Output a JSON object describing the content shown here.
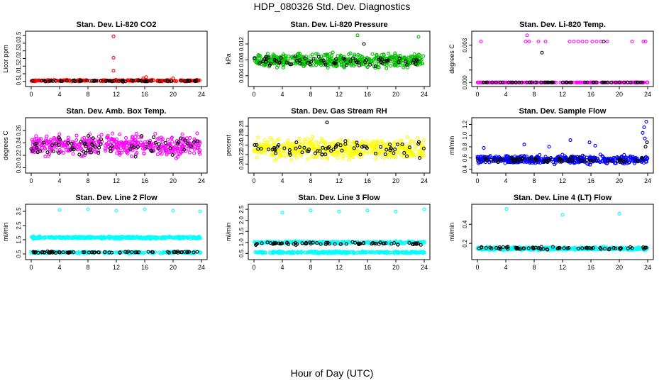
{
  "figure": {
    "title": "HDP_080326  Std. Dev. Diagnostics",
    "xlabel": "Hour of Day (UTC)"
  },
  "chart_data": [
    {
      "type": "scatter",
      "title": "Stan. Dev. Li-820 CO2",
      "ylabel": "Licor ppm",
      "color": "#ff0000",
      "xlim": [
        0,
        24
      ],
      "xticks": [
        0,
        4,
        8,
        12,
        16,
        20,
        24
      ],
      "ylim": [
        0.35,
        3.6
      ],
      "yticks": [
        0.5,
        1.0,
        1.5,
        2.0,
        2.5,
        3.0,
        3.5
      ],
      "ytick_labels": [
        "0.5",
        "1.0",
        "1.5",
        "2.0",
        "2.5",
        "3.0",
        "3.5"
      ],
      "series": [
        {
          "name": "colored",
          "color": "#ff0000",
          "n": 240,
          "base": 0.55,
          "spread": 0.05,
          "x_range": [
            0,
            24
          ]
        },
        {
          "name": "black",
          "color": "#000000",
          "n": 60,
          "base": 0.53,
          "spread": 0.04,
          "x_range": [
            0,
            24
          ]
        }
      ],
      "outliers": [
        {
          "x": 11.6,
          "y": 3.45,
          "color": "#ff0000"
        },
        {
          "x": 11.6,
          "y": 2.05,
          "color": "#ff0000"
        },
        {
          "x": 11.6,
          "y": 1.2,
          "color": "#ff0000"
        },
        {
          "x": 16.2,
          "y": 0.78,
          "color": "#ff0000"
        },
        {
          "x": 15.8,
          "y": 0.7,
          "color": "#ff0000"
        },
        {
          "x": 20.0,
          "y": 0.7,
          "color": "#ff0000"
        }
      ]
    },
    {
      "type": "scatter",
      "title": "Stan. Dev. Li-820 Pressure",
      "ylabel": "kPa",
      "color": "#00c000",
      "xlim": [
        0,
        24
      ],
      "xticks": [
        0,
        4,
        8,
        12,
        16,
        20,
        24
      ],
      "ylim": [
        0.002,
        0.0145
      ],
      "yticks": [
        0.004,
        0.008,
        0.012
      ],
      "ytick_labels": [
        "0.004",
        "0.008",
        "0.012"
      ],
      "series": [
        {
          "name": "colored",
          "color": "#00c000",
          "n": 480,
          "base": 0.0078,
          "spread": 0.0016,
          "x_range": [
            0,
            24
          ]
        },
        {
          "name": "black",
          "color": "#000000",
          "n": 70,
          "base": 0.0076,
          "spread": 0.0012,
          "x_range": [
            0,
            24
          ]
        }
      ],
      "outliers": [
        {
          "x": 14.6,
          "y": 0.0142,
          "color": "#00c000"
        },
        {
          "x": 23.2,
          "y": 0.0138,
          "color": "#00c000"
        },
        {
          "x": 15.5,
          "y": 0.012,
          "color": "#000000"
        }
      ]
    },
    {
      "type": "scatter",
      "title": "Stan. Dev. Li-820 Temp.",
      "ylabel": "degrees C",
      "color": "#ff00ff",
      "xlim": [
        0,
        24
      ],
      "xticks": [
        0,
        4,
        8,
        12,
        16,
        20,
        24
      ],
      "ylim": [
        -0.0001,
        0.0039
      ],
      "yticks": [
        0.0,
        0.001,
        0.002,
        0.003
      ],
      "ytick_labels": [
        "0.000",
        "",
        "",
        "0.003"
      ],
      "series": [
        {
          "name": "colored",
          "color": "#ff00ff",
          "n": 240,
          "base": 0.0,
          "spread": 0.0,
          "x_range": [
            0,
            24
          ]
        },
        {
          "name": "black",
          "color": "#000000",
          "n": 60,
          "base": 0.0,
          "spread": 0.0,
          "x_range": [
            0,
            24
          ]
        }
      ],
      "outliers": [
        {
          "x": 0.5,
          "y": 0.0033,
          "color": "#ff00ff"
        },
        {
          "x": 7.0,
          "y": 0.0038,
          "color": "#ff00ff"
        },
        {
          "x": 6.8,
          "y": 0.0033,
          "color": "#ff00ff"
        },
        {
          "x": 7.3,
          "y": 0.0033,
          "color": "#ff00ff"
        },
        {
          "x": 8.6,
          "y": 0.0033,
          "color": "#ff00ff"
        },
        {
          "x": 9.1,
          "y": 0.0024,
          "color": "#000000"
        },
        {
          "x": 9.6,
          "y": 0.0033,
          "color": "#ff00ff"
        },
        {
          "x": 13.0,
          "y": 0.0033,
          "color": "#ff00ff"
        },
        {
          "x": 13.6,
          "y": 0.0033,
          "color": "#ff00ff"
        },
        {
          "x": 14.2,
          "y": 0.0033,
          "color": "#ff00ff"
        },
        {
          "x": 14.8,
          "y": 0.0033,
          "color": "#ff00ff"
        },
        {
          "x": 15.4,
          "y": 0.0033,
          "color": "#ff00ff"
        },
        {
          "x": 16.2,
          "y": 0.0033,
          "color": "#ff00ff"
        },
        {
          "x": 16.8,
          "y": 0.0033,
          "color": "#ff00ff"
        },
        {
          "x": 17.4,
          "y": 0.0033,
          "color": "#ff00ff"
        },
        {
          "x": 17.8,
          "y": 0.0033,
          "color": "#000000"
        },
        {
          "x": 18.3,
          "y": 0.0033,
          "color": "#ff00ff"
        },
        {
          "x": 21.8,
          "y": 0.0033,
          "color": "#ff00ff"
        },
        {
          "x": 23.4,
          "y": 0.0033,
          "color": "#ff00ff"
        },
        {
          "x": 23.7,
          "y": 0.0033,
          "color": "#ff00ff"
        },
        {
          "x": 7.9,
          "y": 0.0,
          "color": "#ff00ff"
        },
        {
          "x": 15.9,
          "y": 0.0,
          "color": "#ff00ff"
        }
      ]
    },
    {
      "type": "scatter",
      "title": "Stan. Dev. Amb. Box Temp.",
      "ylabel": "degrees C",
      "color": "#ff00ff",
      "xlim": [
        0,
        24
      ],
      "xticks": [
        0,
        4,
        8,
        12,
        16,
        20,
        24
      ],
      "ylim": [
        0.196,
        0.276
      ],
      "yticks": [
        0.2,
        0.22,
        0.24,
        0.26
      ],
      "ytick_labels": [
        "0.20",
        "0.22",
        "0.24",
        "0.26"
      ],
      "series": [
        {
          "name": "colored",
          "color": "#ff00ff",
          "n": 460,
          "base": 0.236,
          "spread": 0.016,
          "x_range": [
            0,
            24
          ]
        },
        {
          "name": "black",
          "color": "#000000",
          "n": 70,
          "base": 0.236,
          "spread": 0.014,
          "x_range": [
            0,
            24
          ]
        }
      ],
      "outliers": []
    },
    {
      "type": "scatter",
      "title": "Stan. Dev. Gas Stream RH",
      "ylabel": "percent",
      "color": "#ffff00",
      "xlim": [
        0,
        24
      ],
      "xticks": [
        0,
        4,
        8,
        12,
        16,
        20,
        24
      ],
      "ylim": [
        0.187,
        0.292
      ],
      "yticks": [
        0.2,
        0.22,
        0.24,
        0.26,
        0.28
      ],
      "ytick_labels": [
        "0.20",
        "0.22",
        "0.24",
        "0.26",
        "0.28"
      ],
      "series": [
        {
          "name": "colored",
          "color": "#ffff00",
          "n": 480,
          "base": 0.232,
          "spread": 0.02,
          "x_range": [
            0,
            24
          ]
        },
        {
          "name": "black",
          "color": "#000000",
          "n": 70,
          "base": 0.232,
          "spread": 0.018,
          "x_range": [
            0,
            24
          ]
        }
      ],
      "outliers": [
        {
          "x": 10.3,
          "y": 0.288,
          "color": "#000000"
        }
      ]
    },
    {
      "type": "scatter",
      "title": "Stan. Dev. Sample Flow",
      "ylabel": "ml/min",
      "color": "#0000ff",
      "xlim": [
        0,
        24
      ],
      "xticks": [
        0,
        4,
        8,
        12,
        16,
        20,
        24
      ],
      "ylim": [
        0.38,
        1.27
      ],
      "yticks": [
        0.4,
        0.6,
        0.8,
        1.0,
        1.2
      ],
      "ytick_labels": [
        "0.4",
        "0.6",
        "0.8",
        "1.0",
        "1.2"
      ],
      "series": [
        {
          "name": "colored",
          "color": "#0000ff",
          "n": 470,
          "base": 0.57,
          "spread": 0.07,
          "x_range": [
            0,
            24
          ]
        },
        {
          "name": "black",
          "color": "#000000",
          "n": 70,
          "base": 0.56,
          "spread": 0.05,
          "x_range": [
            0,
            24
          ]
        }
      ],
      "outliers": [
        {
          "x": 23.8,
          "y": 1.25,
          "color": "#0000ff"
        },
        {
          "x": 23.5,
          "y": 1.15,
          "color": "#0000ff"
        },
        {
          "x": 23.3,
          "y": 1.05,
          "color": "#0000ff"
        },
        {
          "x": 23.6,
          "y": 0.95,
          "color": "#0000ff"
        },
        {
          "x": 23.9,
          "y": 0.88,
          "color": "#000000"
        },
        {
          "x": 23.7,
          "y": 0.8,
          "color": "#000000"
        },
        {
          "x": 13.1,
          "y": 0.92,
          "color": "#0000ff"
        },
        {
          "x": 15.8,
          "y": 0.88,
          "color": "#0000ff"
        },
        {
          "x": 16.6,
          "y": 0.82,
          "color": "#0000ff"
        },
        {
          "x": 6.6,
          "y": 0.84,
          "color": "#0000ff"
        },
        {
          "x": 10.1,
          "y": 0.8,
          "color": "#0000ff"
        },
        {
          "x": 0.9,
          "y": 0.78,
          "color": "#0000ff"
        }
      ]
    },
    {
      "type": "scatter",
      "title": "Stan. Dev. Line 2 Flow",
      "ylabel": "ml/min",
      "color": "#00ffff",
      "xlim": [
        0,
        24
      ],
      "xticks": [
        0,
        4,
        8,
        12,
        16,
        20,
        24
      ],
      "ylim": [
        0.3,
        3.8
      ],
      "yticks": [
        0.5,
        1.5,
        2.5,
        3.5
      ],
      "ytick_labels": [
        "0.5",
        "1.5",
        "2.5",
        "3.5"
      ],
      "series": [
        {
          "name": "colored",
          "color": "#00ffff",
          "n": 420,
          "base": 1.65,
          "spread": 0.07,
          "x_range": [
            0,
            24
          ]
        },
        {
          "name": "colored-low",
          "color": "#00ffff",
          "n": 220,
          "base": 0.6,
          "spread": 0.07,
          "x_range": [
            0,
            24
          ]
        },
        {
          "name": "black",
          "color": "#000000",
          "n": 70,
          "base": 0.62,
          "spread": 0.05,
          "x_range": [
            0,
            24
          ]
        }
      ],
      "outliers": [
        {
          "x": 4.0,
          "y": 3.6,
          "color": "#00ffff"
        },
        {
          "x": 8.0,
          "y": 3.65,
          "color": "#00ffff"
        },
        {
          "x": 12.0,
          "y": 3.55,
          "color": "#00ffff"
        },
        {
          "x": 16.0,
          "y": 3.65,
          "color": "#00ffff"
        },
        {
          "x": 20.0,
          "y": 3.55,
          "color": "#00ffff"
        },
        {
          "x": 23.8,
          "y": 3.5,
          "color": "#00ffff"
        }
      ]
    },
    {
      "type": "scatter",
      "title": "Stan. Dev. Line 3 Flow",
      "ylabel": "ml/min",
      "color": "#00ffff",
      "xlim": [
        0,
        24
      ],
      "xticks": [
        0,
        4,
        8,
        12,
        16,
        20,
        24
      ],
      "ylim": [
        0.35,
        2.6
      ],
      "yticks": [
        0.5,
        1.0,
        1.5,
        2.0,
        2.5
      ],
      "ytick_labels": [
        "0.5",
        "1.0",
        "1.5",
        "2.0",
        "2.5"
      ],
      "series": [
        {
          "name": "colored",
          "color": "#00ffff",
          "n": 300,
          "base": 1.0,
          "spread": 0.05,
          "x_range": [
            0,
            24
          ]
        },
        {
          "name": "colored-low",
          "color": "#00ffff",
          "n": 300,
          "base": 0.55,
          "spread": 0.04,
          "x_range": [
            0,
            24
          ]
        },
        {
          "name": "black",
          "color": "#000000",
          "n": 70,
          "base": 0.95,
          "spread": 0.06,
          "x_range": [
            0,
            24
          ]
        }
      ],
      "outliers": [
        {
          "x": 4.0,
          "y": 2.35,
          "color": "#00ffff"
        },
        {
          "x": 8.0,
          "y": 2.45,
          "color": "#00ffff"
        },
        {
          "x": 12.0,
          "y": 2.4,
          "color": "#00ffff"
        },
        {
          "x": 16.0,
          "y": 2.45,
          "color": "#00ffff"
        },
        {
          "x": 20.0,
          "y": 2.4,
          "color": "#00ffff"
        },
        {
          "x": 24.0,
          "y": 2.5,
          "color": "#00ffff"
        }
      ]
    },
    {
      "type": "scatter",
      "title": "Stan. Dev. Line 4 (LT) Flow",
      "ylabel": "ml/min",
      "color": "#00ffff",
      "xlim": [
        0,
        24
      ],
      "xticks": [
        0,
        4,
        8,
        12,
        16,
        20,
        24
      ],
      "ylim": [
        0.06,
        0.58
      ],
      "yticks": [
        0.2,
        0.4
      ],
      "ytick_labels": [
        "0.2",
        "0.4"
      ],
      "series": [
        {
          "name": "colored",
          "color": "#00ffff",
          "n": 480,
          "base": 0.145,
          "spread": 0.015,
          "x_range": [
            0,
            24
          ]
        },
        {
          "name": "black",
          "color": "#000000",
          "n": 70,
          "base": 0.15,
          "spread": 0.012,
          "x_range": [
            0,
            24
          ]
        }
      ],
      "outliers": [
        {
          "x": 4.1,
          "y": 0.56,
          "color": "#00ffff"
        },
        {
          "x": 12.0,
          "y": 0.5,
          "color": "#00ffff"
        },
        {
          "x": 20.0,
          "y": 0.51,
          "color": "#00ffff"
        }
      ]
    }
  ]
}
